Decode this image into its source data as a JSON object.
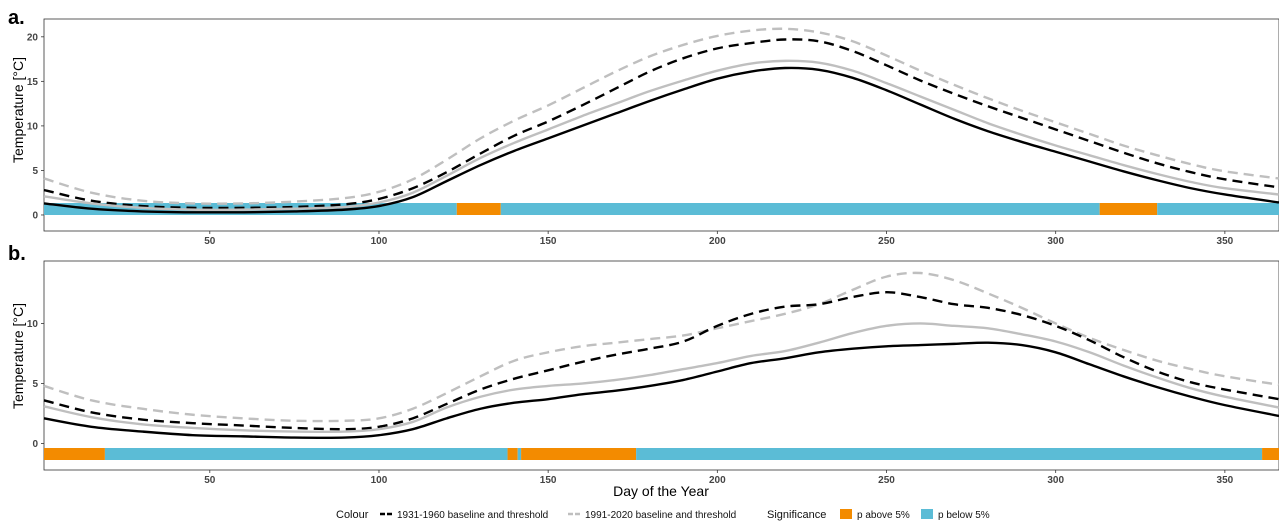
{
  "legend": {
    "colour_title": "Colour",
    "significance_title": "Significance",
    "items": [
      {
        "label": "1931-1960 baseline and threshold",
        "color": "#000000",
        "dashed": true
      },
      {
        "label": "1991-2020 baseline and threshold",
        "color": "#bfbfbf",
        "dashed": true
      },
      {
        "label": "p above 5%",
        "color": "#f38b00",
        "swatch": true
      },
      {
        "label": "p below 5%",
        "color": "#5bbcd6",
        "swatch": true
      }
    ]
  },
  "chart_data": [
    {
      "type": "line",
      "panel_label": "a.",
      "ylabel": "Temperature [°C]",
      "xlabel": "",
      "xlim": [
        1,
        366
      ],
      "ylim": [
        -1.8,
        22
      ],
      "x_ticks": [
        50,
        100,
        150,
        200,
        250,
        300,
        350
      ],
      "y_ticks": [
        0,
        5,
        10,
        15,
        20
      ],
      "grid": false,
      "x": [
        1,
        15,
        30,
        45,
        60,
        75,
        90,
        100,
        110,
        120,
        130,
        140,
        150,
        160,
        170,
        180,
        190,
        200,
        210,
        220,
        230,
        240,
        250,
        260,
        270,
        280,
        290,
        300,
        310,
        320,
        330,
        340,
        350,
        366
      ],
      "series": [
        {
          "color": "#000000",
          "dash": false,
          "values": [
            1.3,
            0.7,
            0.4,
            0.3,
            0.3,
            0.4,
            0.6,
            1.0,
            2.0,
            3.8,
            5.6,
            7.2,
            8.6,
            10.0,
            11.4,
            12.8,
            14.1,
            15.3,
            16.1,
            16.5,
            16.3,
            15.4,
            14.0,
            12.4,
            10.8,
            9.4,
            8.2,
            7.1,
            6.0,
            4.9,
            3.9,
            3.0,
            2.3,
            1.4
          ]
        },
        {
          "color": "#000000",
          "dash": true,
          "values": [
            2.8,
            1.6,
            1.0,
            0.8,
            0.8,
            0.9,
            1.2,
            1.8,
            3.0,
            4.8,
            6.9,
            8.9,
            10.5,
            12.3,
            14.2,
            16.1,
            17.6,
            18.7,
            19.3,
            19.7,
            19.5,
            18.4,
            16.8,
            15.1,
            13.6,
            12.2,
            10.9,
            9.6,
            8.3,
            7.0,
            5.8,
            4.8,
            4.0,
            3.1
          ]
        },
        {
          "color": "#bfbfbf",
          "dash": false,
          "values": [
            2.1,
            1.3,
            0.8,
            0.6,
            0.6,
            0.7,
            0.9,
            1.4,
            2.5,
            4.4,
            6.4,
            8.1,
            9.6,
            11.1,
            12.5,
            13.9,
            15.1,
            16.2,
            17.0,
            17.3,
            17.1,
            16.2,
            14.8,
            13.3,
            11.8,
            10.3,
            9.0,
            7.8,
            6.7,
            5.6,
            4.6,
            3.7,
            3.0,
            2.3
          ]
        },
        {
          "color": "#bfbfbf",
          "dash": true,
          "values": [
            4.1,
            2.5,
            1.6,
            1.3,
            1.3,
            1.5,
            1.9,
            2.6,
            4.0,
            6.2,
            8.6,
            10.6,
            12.3,
            14.2,
            16.1,
            17.8,
            19.1,
            20.1,
            20.7,
            20.9,
            20.5,
            19.5,
            17.9,
            16.2,
            14.6,
            13.1,
            11.7,
            10.4,
            9.1,
            7.8,
            6.7,
            5.7,
            4.9,
            4.1
          ]
        }
      ],
      "significance": [
        {
          "start": 1,
          "end": 123,
          "level": "p below 5%"
        },
        {
          "start": 123,
          "end": 136,
          "level": "p above 5%"
        },
        {
          "start": 136,
          "end": 313,
          "level": "p below 5%"
        },
        {
          "start": 313,
          "end": 330,
          "level": "p above 5%"
        },
        {
          "start": 330,
          "end": 366,
          "level": "p below 5%"
        }
      ]
    },
    {
      "type": "line",
      "panel_label": "b.",
      "ylabel": "Temperature [°C]",
      "xlabel": "Day of the Year",
      "xlim": [
        1,
        366
      ],
      "ylim": [
        -2.2,
        15.2
      ],
      "x_ticks": [
        50,
        100,
        150,
        200,
        250,
        300,
        350
      ],
      "y_ticks": [
        0,
        5,
        10
      ],
      "grid": false,
      "x": [
        1,
        15,
        30,
        45,
        60,
        75,
        90,
        100,
        110,
        120,
        130,
        140,
        150,
        160,
        170,
        180,
        190,
        200,
        210,
        220,
        230,
        240,
        250,
        260,
        270,
        280,
        290,
        300,
        310,
        320,
        330,
        340,
        350,
        366
      ],
      "series": [
        {
          "color": "#000000",
          "dash": false,
          "values": [
            2.1,
            1.4,
            1.0,
            0.7,
            0.6,
            0.5,
            0.5,
            0.7,
            1.2,
            2.1,
            2.9,
            3.4,
            3.7,
            4.1,
            4.4,
            4.8,
            5.3,
            6.0,
            6.7,
            7.1,
            7.6,
            7.9,
            8.1,
            8.2,
            8.3,
            8.4,
            8.2,
            7.6,
            6.6,
            5.6,
            4.7,
            3.9,
            3.2,
            2.3
          ]
        },
        {
          "color": "#000000",
          "dash": true,
          "values": [
            3.6,
            2.6,
            2.0,
            1.7,
            1.5,
            1.3,
            1.2,
            1.4,
            2.1,
            3.3,
            4.5,
            5.4,
            6.1,
            6.8,
            7.4,
            7.9,
            8.5,
            9.8,
            10.8,
            11.4,
            11.6,
            12.2,
            12.6,
            12.2,
            11.6,
            11.3,
            10.7,
            9.8,
            8.6,
            7.2,
            6.0,
            5.1,
            4.5,
            3.7
          ]
        },
        {
          "color": "#bfbfbf",
          "dash": false,
          "values": [
            3.1,
            2.2,
            1.6,
            1.3,
            1.1,
            1.0,
            1.0,
            1.2,
            1.8,
            3.0,
            3.9,
            4.5,
            4.8,
            5.0,
            5.3,
            5.7,
            6.2,
            6.7,
            7.3,
            7.7,
            8.4,
            9.2,
            9.8,
            10.0,
            9.8,
            9.6,
            9.1,
            8.5,
            7.6,
            6.5,
            5.5,
            4.6,
            3.9,
            3.0
          ]
        },
        {
          "color": "#bfbfbf",
          "dash": true,
          "values": [
            4.8,
            3.6,
            2.9,
            2.4,
            2.1,
            1.9,
            1.9,
            2.1,
            2.9,
            4.2,
            5.6,
            6.9,
            7.6,
            8.1,
            8.4,
            8.7,
            9.0,
            9.6,
            10.2,
            10.8,
            11.6,
            12.8,
            13.9,
            14.2,
            13.6,
            12.5,
            11.3,
            10.0,
            8.8,
            7.8,
            6.9,
            6.2,
            5.6,
            4.9
          ]
        }
      ],
      "significance": [
        {
          "start": 1,
          "end": 19,
          "level": "p above 5%"
        },
        {
          "start": 19,
          "end": 138,
          "level": "p below 5%"
        },
        {
          "start": 138,
          "end": 141,
          "level": "p above 5%"
        },
        {
          "start": 141,
          "end": 142,
          "level": "p below 5%"
        },
        {
          "start": 142,
          "end": 176,
          "level": "p above 5%"
        },
        {
          "start": 176,
          "end": 361,
          "level": "p below 5%"
        },
        {
          "start": 361,
          "end": 366,
          "level": "p above 5%"
        }
      ]
    }
  ]
}
